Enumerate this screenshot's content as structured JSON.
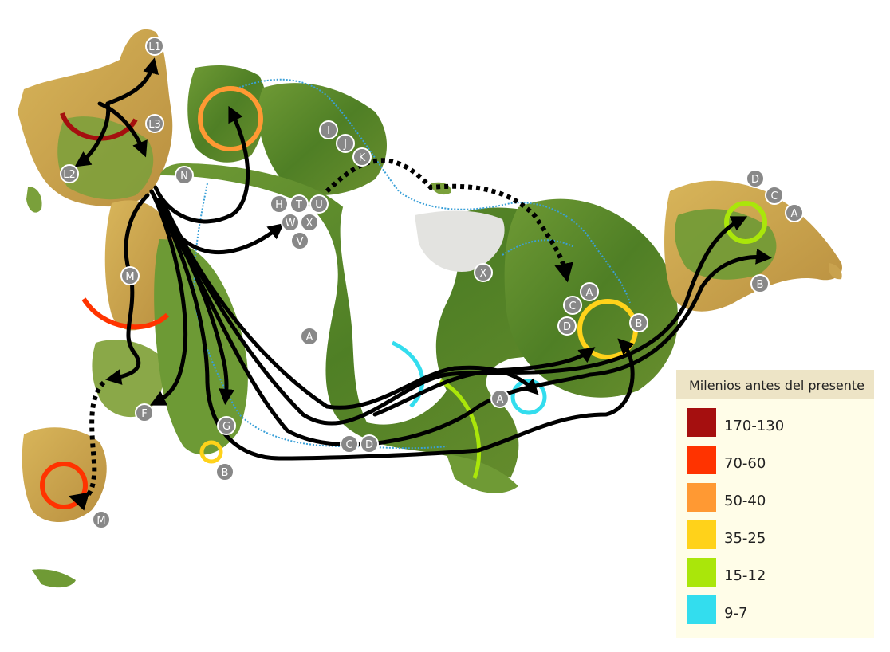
{
  "legend": {
    "title": "Milenios antes del presente",
    "items": [
      {
        "label": "170-130",
        "color": "#a50f0f"
      },
      {
        "label": "70-60",
        "color": "#ff3300"
      },
      {
        "label": "50-40",
        "color": "#ff9933"
      },
      {
        "label": "35-25",
        "color": "#ffd21a"
      },
      {
        "label": "15-12",
        "color": "#aae60a"
      },
      {
        "label": "9-7",
        "color": "#33ddee"
      }
    ]
  },
  "haplogroup_labels": [
    "L1",
    "L3",
    "L2",
    "N",
    "M",
    "F",
    "G",
    "B",
    "M",
    "I",
    "J",
    "K",
    "H",
    "T",
    "U",
    "W",
    "X",
    "V",
    "A",
    "X",
    "A",
    "C",
    "D",
    "B",
    "A",
    "C",
    "D",
    "D",
    "C",
    "A",
    "B"
  ],
  "colors": {
    "ocean": "#ffffff",
    "land_green": "#5e8f2d",
    "land_dry": "#c9a24e",
    "ice": "#ffffff",
    "ice_edge": "#3aa0d8",
    "arrow": "#000000"
  }
}
